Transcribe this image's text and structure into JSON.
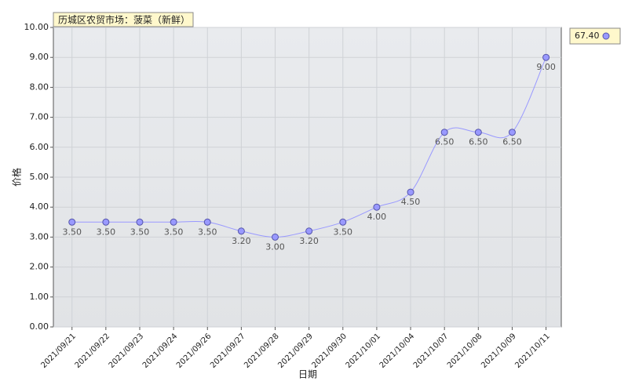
{
  "chart_data": {
    "type": "line",
    "title": "历城区农贸市场：菠菜（新鲜）",
    "x_label": "日期",
    "y_label": "价格",
    "categories": [
      "2021/09/21",
      "2021/09/22",
      "2021/09/23",
      "2021/09/24",
      "2021/09/26",
      "2021/09/27",
      "2021/09/28",
      "2021/09/29",
      "2021/09/30",
      "2021/10/01",
      "2021/10/04",
      "2021/10/07",
      "2021/10/08",
      "2021/10/09",
      "2021/10/11"
    ],
    "series": [
      {
        "name": "67.40",
        "color": "#9999ff",
        "values": [
          3.5,
          3.5,
          3.5,
          3.5,
          3.5,
          3.2,
          3.0,
          3.2,
          3.5,
          4.0,
          4.5,
          6.5,
          6.5,
          6.5,
          9.0
        ],
        "value_labels": [
          "3.50",
          "3.50",
          "3.50",
          "3.50",
          "3.50",
          "3.20",
          "3.00",
          "3.20",
          "3.50",
          "4.00",
          "4.50",
          "6.50",
          "6.50",
          "6.50",
          "9.00"
        ]
      }
    ],
    "ylim": [
      0,
      10
    ],
    "yticks": [
      {
        "value": 0,
        "label": "0.00"
      },
      {
        "value": 1,
        "label": "1.00"
      },
      {
        "value": 2,
        "label": "2.00"
      },
      {
        "value": 3,
        "label": "3.00"
      },
      {
        "value": 4,
        "label": "4.00"
      },
      {
        "value": 5,
        "label": "5.00"
      },
      {
        "value": 6,
        "label": "6.00"
      },
      {
        "value": 7,
        "label": "7.00"
      },
      {
        "value": 8,
        "label": "8.00"
      },
      {
        "value": 9,
        "label": "9.00"
      },
      {
        "value": 10,
        "label": "10.00"
      }
    ],
    "grid": true,
    "legend": "top-right",
    "smooth": true
  }
}
